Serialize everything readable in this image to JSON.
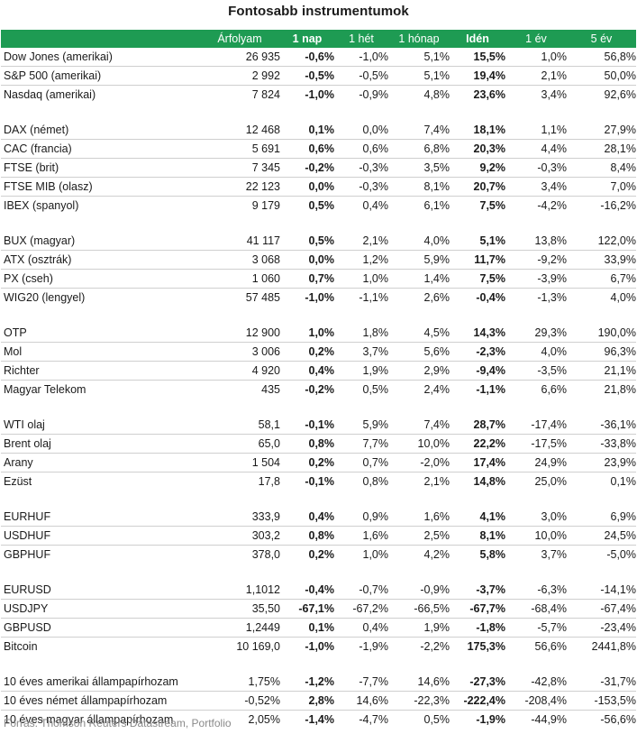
{
  "title": "Fontosabb instrumentumok",
  "columns": [
    "",
    "Árfolyam",
    "1 nap",
    "1 hét",
    "1 hónap",
    "Idén",
    "1 év",
    "5 év"
  ],
  "groups": [
    [
      [
        "Dow Jones (amerikai)",
        "26 935",
        "-0,6%",
        "-1,0%",
        "5,1%",
        "15,5%",
        "1,0%",
        "56,8%"
      ],
      [
        "S&P 500 (amerikai)",
        "2 992",
        "-0,5%",
        "-0,5%",
        "5,1%",
        "19,4%",
        "2,1%",
        "50,0%"
      ],
      [
        "Nasdaq (amerikai)",
        "7 824",
        "-1,0%",
        "-0,9%",
        "4,8%",
        "23,6%",
        "3,4%",
        "92,6%"
      ]
    ],
    [
      [
        "DAX (német)",
        "12 468",
        "0,1%",
        "0,0%",
        "7,4%",
        "18,1%",
        "1,1%",
        "27,9%"
      ],
      [
        "CAC (francia)",
        "5 691",
        "0,6%",
        "0,6%",
        "6,8%",
        "20,3%",
        "4,4%",
        "28,1%"
      ],
      [
        "FTSE (brit)",
        "7 345",
        "-0,2%",
        "-0,3%",
        "3,5%",
        "9,2%",
        "-0,3%",
        "8,4%"
      ],
      [
        "FTSE MIB (olasz)",
        "22 123",
        "0,0%",
        "-0,3%",
        "8,1%",
        "20,7%",
        "3,4%",
        "7,0%"
      ],
      [
        "IBEX (spanyol)",
        "9 179",
        "0,5%",
        "0,4%",
        "6,1%",
        "7,5%",
        "-4,2%",
        "-16,2%"
      ]
    ],
    [
      [
        "BUX (magyar)",
        "41 117",
        "0,5%",
        "2,1%",
        "4,0%",
        "5,1%",
        "13,8%",
        "122,0%"
      ],
      [
        "ATX (osztrák)",
        "3 068",
        "0,0%",
        "1,2%",
        "5,9%",
        "11,7%",
        "-9,2%",
        "33,9%"
      ],
      [
        "PX (cseh)",
        "1 060",
        "0,7%",
        "1,0%",
        "1,4%",
        "7,5%",
        "-3,9%",
        "6,7%"
      ],
      [
        "WIG20 (lengyel)",
        "57 485",
        "-1,0%",
        "-1,1%",
        "2,6%",
        "-0,4%",
        "-1,3%",
        "4,0%"
      ]
    ],
    [
      [
        "OTP",
        "12 900",
        "1,0%",
        "1,8%",
        "4,5%",
        "14,3%",
        "29,3%",
        "190,0%"
      ],
      [
        "Mol",
        "3 006",
        "0,2%",
        "3,7%",
        "5,6%",
        "-2,3%",
        "4,0%",
        "96,3%"
      ],
      [
        "Richter",
        "4 920",
        "0,4%",
        "1,9%",
        "2,9%",
        "-9,4%",
        "-3,5%",
        "21,1%"
      ],
      [
        "Magyar Telekom",
        "435",
        "-0,2%",
        "0,5%",
        "2,4%",
        "-1,1%",
        "6,6%",
        "21,8%"
      ]
    ],
    [
      [
        "WTI olaj",
        "58,1",
        "-0,1%",
        "5,9%",
        "7,4%",
        "28,7%",
        "-17,4%",
        "-36,1%"
      ],
      [
        "Brent olaj",
        "65,0",
        "0,8%",
        "7,7%",
        "10,0%",
        "22,2%",
        "-17,5%",
        "-33,8%"
      ],
      [
        "Arany",
        "1 504",
        "0,2%",
        "0,7%",
        "-2,0%",
        "17,4%",
        "24,9%",
        "23,9%"
      ],
      [
        "Ezüst",
        "17,8",
        "-0,1%",
        "0,8%",
        "2,1%",
        "14,8%",
        "25,0%",
        "0,1%"
      ]
    ],
    [
      [
        "EURHUF",
        "333,9",
        "0,4%",
        "0,9%",
        "1,6%",
        "4,1%",
        "3,0%",
        "6,9%"
      ],
      [
        "USDHUF",
        "303,2",
        "0,8%",
        "1,6%",
        "2,5%",
        "8,1%",
        "10,0%",
        "24,5%"
      ],
      [
        "GBPHUF",
        "378,0",
        "0,2%",
        "1,0%",
        "4,2%",
        "5,8%",
        "3,7%",
        "-5,0%"
      ]
    ],
    [
      [
        "EURUSD",
        "1,1012",
        "-0,4%",
        "-0,7%",
        "-0,9%",
        "-3,7%",
        "-6,3%",
        "-14,1%"
      ],
      [
        "USDJPY",
        "35,50",
        "-67,1%",
        "-67,2%",
        "-66,5%",
        "-67,7%",
        "-68,4%",
        "-67,4%"
      ],
      [
        "GBPUSD",
        "1,2449",
        "0,1%",
        "0,4%",
        "1,9%",
        "-1,8%",
        "-5,7%",
        "-23,4%"
      ],
      [
        "Bitcoin",
        "10 169,0",
        "-1,0%",
        "-1,9%",
        "-2,2%",
        "175,3%",
        "56,6%",
        "2441,8%"
      ]
    ],
    [
      [
        "10 éves amerikai állampapírhozam",
        "1,75%",
        "-1,2%",
        "-7,7%",
        "14,6%",
        "-27,3%",
        "-42,8%",
        "-31,7%"
      ],
      [
        "10 éves német állampapírhozam",
        "-0,52%",
        "2,8%",
        "14,6%",
        "-22,3%",
        "-222,4%",
        "-208,4%",
        "-153,5%"
      ],
      [
        "10 éves magyar állampapírhozam",
        "2,05%",
        "-1,4%",
        "-4,7%",
        "0,5%",
        "-1,9%",
        "-44,9%",
        "-56,6%"
      ]
    ]
  ],
  "source": "Forrás: Thomson Reuters Datastream, Portfolio"
}
